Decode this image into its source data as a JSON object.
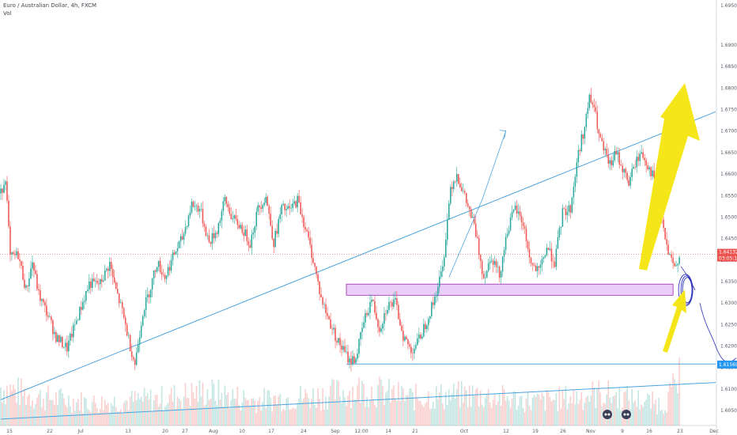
{
  "header": {
    "symbol_line": "Euro / Australian Dollar, 4h, FXCM",
    "volume_label": "Vol"
  },
  "chart_data": {
    "type": "candlestick",
    "title": "Euro / Australian Dollar, 4h, FXCM",
    "ylim": [
      1.6015,
      1.7005
    ],
    "y_ticks": [
      1.605,
      1.61,
      1.615,
      1.62,
      1.625,
      1.63,
      1.635,
      1.64,
      1.645,
      1.65,
      1.655,
      1.66,
      1.665,
      1.67,
      1.675,
      1.68,
      1.685,
      1.69
    ],
    "y_tick_labels": [
      "1.60500",
      "1.61000",
      "1.61500",
      "1.62000",
      "1.62500",
      "1.63000",
      "1.63500",
      "1.64000",
      "1.64500",
      "1.65000",
      "1.65500",
      "1.66000",
      "1.66500",
      "1.67000",
      "1.67500",
      "1.68000",
      "1.68500",
      "1.69000"
    ],
    "top_tick_label": "1.69500",
    "x_tick_labels": [
      "15",
      "22",
      "Jul",
      "13",
      "20",
      "27",
      "Aug",
      "10",
      "17",
      "24",
      "Sep",
      "12:00",
      "14",
      "21",
      "Oct",
      "12",
      "19",
      "26",
      "Nov",
      "9",
      "16",
      "23",
      "Dec"
    ],
    "current_price": {
      "price": 1.64132,
      "label": "1.64132",
      "countdown": "03:05:14"
    },
    "support_price": {
      "price": 1.61569,
      "label": "1.61569"
    },
    "zone": {
      "top": 1.6344,
      "bottom": 1.6318
    },
    "anchors": [
      [
        0,
        1.6555
      ],
      [
        3,
        1.6595
      ],
      [
        6,
        1.6405
      ],
      [
        11,
        1.6412
      ],
      [
        16,
        1.633
      ],
      [
        20,
        1.6395
      ],
      [
        24,
        1.632
      ],
      [
        30,
        1.627
      ],
      [
        35,
        1.622
      ],
      [
        42,
        1.6195
      ],
      [
        48,
        1.626
      ],
      [
        56,
        1.6345
      ],
      [
        63,
        1.6345
      ],
      [
        69,
        1.6392
      ],
      [
        72,
        1.6342
      ],
      [
        77,
        1.628
      ],
      [
        82,
        1.62
      ],
      [
        85,
        1.6158
      ],
      [
        90,
        1.628
      ],
      [
        94,
        1.6325
      ],
      [
        99,
        1.6395
      ],
      [
        104,
        1.636
      ],
      [
        110,
        1.6415
      ],
      [
        115,
        1.645
      ],
      [
        121,
        1.653
      ],
      [
        126,
        1.652
      ],
      [
        132,
        1.644
      ],
      [
        137,
        1.647
      ],
      [
        142,
        1.654
      ],
      [
        147,
        1.6495
      ],
      [
        152,
        1.6478
      ],
      [
        158,
        1.644
      ],
      [
        163,
        1.652
      ],
      [
        168,
        1.6548
      ],
      [
        173,
        1.644
      ],
      [
        178,
        1.652
      ],
      [
        183,
        1.6515
      ],
      [
        188,
        1.654
      ],
      [
        193,
        1.6475
      ],
      [
        198,
        1.64
      ],
      [
        203,
        1.631
      ],
      [
        208,
        1.626
      ],
      [
        213,
        1.6215
      ],
      [
        217,
        1.619
      ],
      [
        221,
        1.6165
      ],
      [
        225,
        1.6172
      ],
      [
        230,
        1.6255
      ],
      [
        235,
        1.631
      ],
      [
        240,
        1.624
      ],
      [
        245,
        1.6295
      ],
      [
        250,
        1.63
      ],
      [
        255,
        1.6225
      ],
      [
        260,
        1.6188
      ],
      [
        265,
        1.6215
      ],
      [
        270,
        1.626
      ],
      [
        274,
        1.63
      ],
      [
        280,
        1.638
      ],
      [
        285,
        1.657
      ],
      [
        289,
        1.66
      ],
      [
        294,
        1.6545
      ],
      [
        300,
        1.648
      ],
      [
        306,
        1.636
      ],
      [
        311,
        1.641
      ],
      [
        316,
        1.6365
      ],
      [
        321,
        1.647
      ],
      [
        326,
        1.652
      ],
      [
        331,
        1.6485
      ],
      [
        336,
        1.639
      ],
      [
        341,
        1.637
      ],
      [
        346,
        1.643
      ],
      [
        351,
        1.6395
      ],
      [
        356,
        1.651
      ],
      [
        361,
        1.652
      ],
      [
        366,
        1.665
      ],
      [
        370,
        1.671
      ],
      [
        373,
        1.6775
      ],
      [
        376,
        1.6755
      ],
      [
        379,
        1.669
      ],
      [
        382,
        1.6655
      ],
      [
        386,
        1.662
      ],
      [
        390,
        1.665
      ],
      [
        394,
        1.6612
      ],
      [
        398,
        1.658
      ],
      [
        402,
        1.6625
      ],
      [
        406,
        1.665
      ],
      [
        410,
        1.662
      ],
      [
        414,
        1.659
      ],
      [
        418,
        1.652
      ],
      [
        421,
        1.6445
      ],
      [
        424,
        1.6402
      ],
      [
        427,
        1.638
      ],
      [
        430,
        1.6413
      ]
    ],
    "volume_anchors": [
      [
        0,
        0.55
      ],
      [
        20,
        0.42
      ],
      [
        60,
        0.32
      ],
      [
        100,
        0.38
      ],
      [
        130,
        0.48
      ],
      [
        160,
        0.36
      ],
      [
        200,
        0.42
      ],
      [
        230,
        0.52
      ],
      [
        260,
        0.4
      ],
      [
        300,
        0.44
      ],
      [
        340,
        0.34
      ],
      [
        380,
        0.46
      ],
      [
        420,
        0.3
      ],
      [
        430,
        0.65
      ]
    ],
    "trendlines": [
      {
        "from": [
          0,
          1.6075
        ],
        "to": [
          453,
          1.6745
        ],
        "color": "#4aa3df"
      },
      {
        "from": [
          0,
          1.603
        ],
        "to": [
          453,
          1.6115
        ],
        "color": "#4aa3df"
      },
      {
        "from": [
          219,
          1.6158
        ],
        "to": [
          453,
          1.6158
        ],
        "color": "#4aa3df"
      }
    ],
    "annotations": {
      "arrow_color": "#f5e61a",
      "projection_color": "#2a2fb8"
    }
  }
}
